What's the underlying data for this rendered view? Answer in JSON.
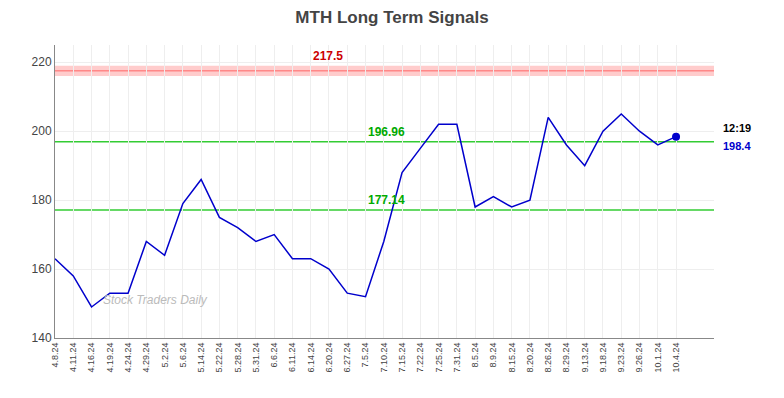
{
  "chart_data": {
    "type": "line",
    "title": "MTH Long Term Signals",
    "categories": [
      "4.8.24",
      "4.11.24",
      "4.16.24",
      "4.19.24",
      "4.24.24",
      "4.29.24",
      "5.2.24",
      "5.6.24",
      "5.14.24",
      "5.22.24",
      "5.28.24",
      "5.31.24",
      "6.6.24",
      "6.11.24",
      "6.14.24",
      "6.20.24",
      "6.27.24",
      "7.5.24",
      "7.10.24",
      "7.15.24",
      "7.22.24",
      "7.25.24",
      "7.31.24",
      "8.5.24",
      "8.9.24",
      "8.15.24",
      "8.20.24",
      "8.26.24",
      "8.29.24",
      "9.13.24",
      "9.18.24",
      "9.23.24",
      "9.26.24",
      "10.1.24",
      "10.4.24"
    ],
    "values": [
      163,
      158,
      149,
      153,
      153,
      168,
      164,
      179,
      186,
      175,
      172,
      168,
      170,
      163,
      163,
      160,
      153,
      152,
      168,
      188,
      195,
      202,
      202,
      178,
      181,
      178,
      180,
      204,
      196,
      190,
      200,
      205,
      200,
      196,
      198.4
    ],
    "color": "#0000cc",
    "ylim": [
      140,
      225
    ],
    "yticks": [
      140,
      160,
      180,
      200,
      220
    ],
    "grid": true,
    "reference_lines": [
      {
        "value": 217.5,
        "color": "#ff6666",
        "text_color": "#cc0000",
        "band": [
          216,
          219
        ],
        "band_color": "#ffcccc",
        "label_at": "6.14.24"
      },
      {
        "value": 196.96,
        "color": "#33cc33",
        "text_color": "#00aa00",
        "label_at": "7.5.24"
      },
      {
        "value": 177.14,
        "color": "#33cc33",
        "text_color": "#00aa00",
        "label_at": "7.5.24"
      }
    ],
    "last_point": {
      "time": "12:19",
      "value": 198.4,
      "marker": "circle",
      "time_color": "#000000",
      "value_color": "#0000cc"
    },
    "watermark": "Stock Traders Daily"
  }
}
